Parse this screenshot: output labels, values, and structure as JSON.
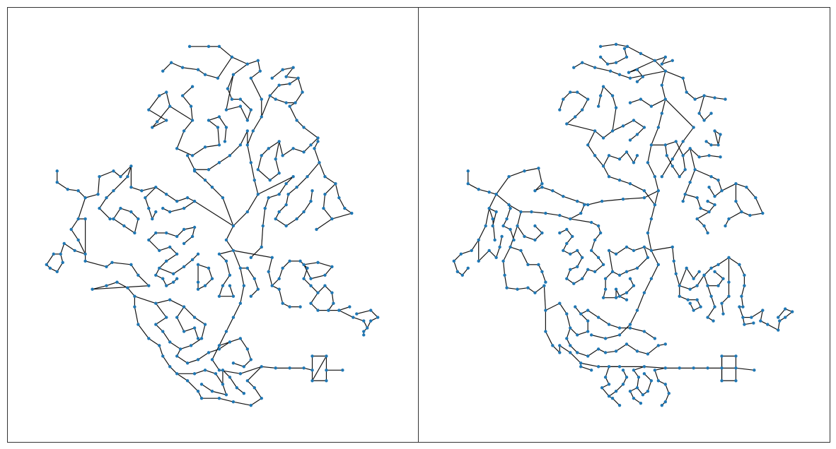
{
  "figure": {
    "panel_count": 2,
    "node_color": "#1f77b4",
    "edge_color": "#111111",
    "frame_color": "#333333",
    "background": "#ffffff"
  },
  "panels": [
    {
      "name": "left-graph-panel",
      "description_visible_text": ""
    },
    {
      "name": "right-graph-panel",
      "description_visible_text": ""
    }
  ]
}
